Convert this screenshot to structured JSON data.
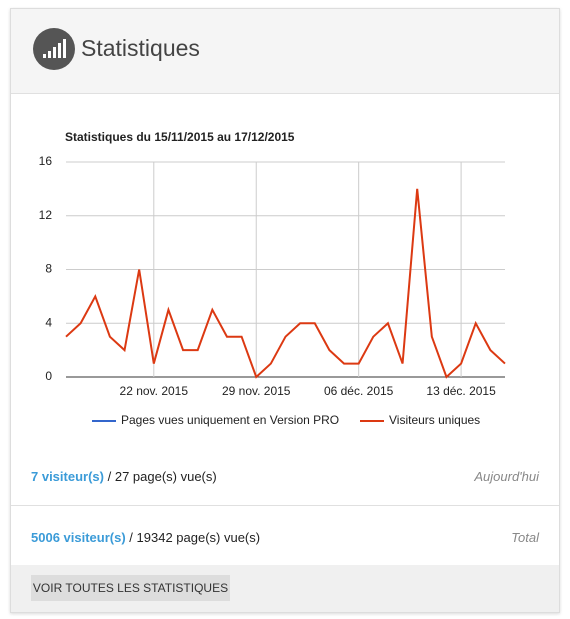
{
  "header": {
    "title": "Statistiques"
  },
  "chart_data": {
    "type": "line",
    "title": "Statistiques du 15/11/2015 au 17/12/2015",
    "categories": [
      null,
      null,
      null,
      null,
      null,
      null,
      "22 nov. 2015",
      null,
      null,
      null,
      null,
      null,
      null,
      "29 nov. 2015",
      null,
      null,
      null,
      null,
      null,
      null,
      "06 déc. 2015",
      null,
      null,
      null,
      null,
      null,
      null,
      "13 déc. 2015",
      null,
      null,
      null
    ],
    "series": [
      {
        "name": "Pages vues uniquement en Version PRO",
        "color": "#3366cc"
      },
      {
        "name": "Visiteurs uniques",
        "color": "#dc3912",
        "values": [
          3,
          4,
          6,
          3,
          2,
          8,
          1,
          5,
          2,
          2,
          5,
          3,
          3,
          0,
          1,
          3,
          4,
          4,
          2,
          1,
          1,
          3,
          4,
          1,
          14,
          3,
          0,
          1,
          4,
          2,
          1
        ]
      }
    ],
    "ylim": [
      0,
      16
    ],
    "yticks": [
      0,
      4,
      8,
      12,
      16
    ],
    "grid": true,
    "legend": "bottom"
  },
  "stats": [
    {
      "visitors": "7 visiteur(s)",
      "pages": "/ 27 page(s) vue(s)",
      "period": "Aujourd'hui"
    },
    {
      "visitors": "5006 visiteur(s)",
      "pages": "/ 19342 page(s) vue(s)",
      "period": "Total"
    }
  ],
  "button": "VOIR TOUTES LES STATISTIQUES"
}
